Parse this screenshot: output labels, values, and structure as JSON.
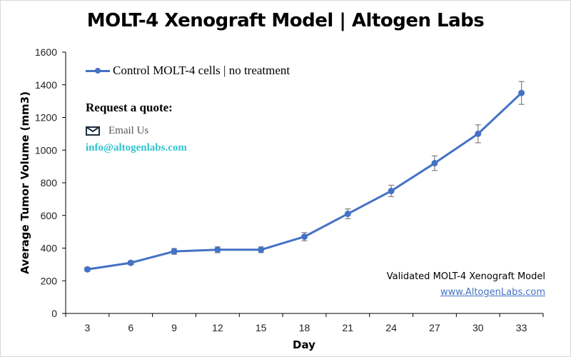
{
  "chart_data": {
    "type": "line",
    "title": "MOLT-4 Xenograft Model | Altogen Labs",
    "xlabel": "Day",
    "ylabel": "Average Tumor Volume (mm3)",
    "x": [
      3,
      6,
      9,
      12,
      15,
      18,
      21,
      24,
      27,
      30,
      33
    ],
    "x_tick_labels": [
      "3",
      "6",
      "9",
      "12",
      "15",
      "18",
      "21",
      "24",
      "27",
      "30",
      "33"
    ],
    "y_tick_labels": [
      "0",
      "200",
      "400",
      "600",
      "800",
      "1000",
      "1200",
      "1400",
      "1600"
    ],
    "ylim": [
      0,
      1600
    ],
    "grid": false,
    "legend_position": "top-left",
    "series": [
      {
        "name": "Control MOLT-4 cells | no treatment",
        "color": "#4472c4",
        "values": [
          270,
          310,
          380,
          390,
          390,
          470,
          610,
          750,
          920,
          1100,
          1350
        ],
        "error": [
          12,
          12,
          18,
          18,
          18,
          25,
          30,
          35,
          45,
          55,
          70
        ]
      }
    ]
  },
  "annotations": {
    "quote_heading": "Request a quote:",
    "email_label": "Email Us",
    "email_address": "info@altogenlabs.com",
    "validated_text": "Validated MOLT-4 Xenograft Model",
    "website": "www.AltogenLabs.com"
  }
}
